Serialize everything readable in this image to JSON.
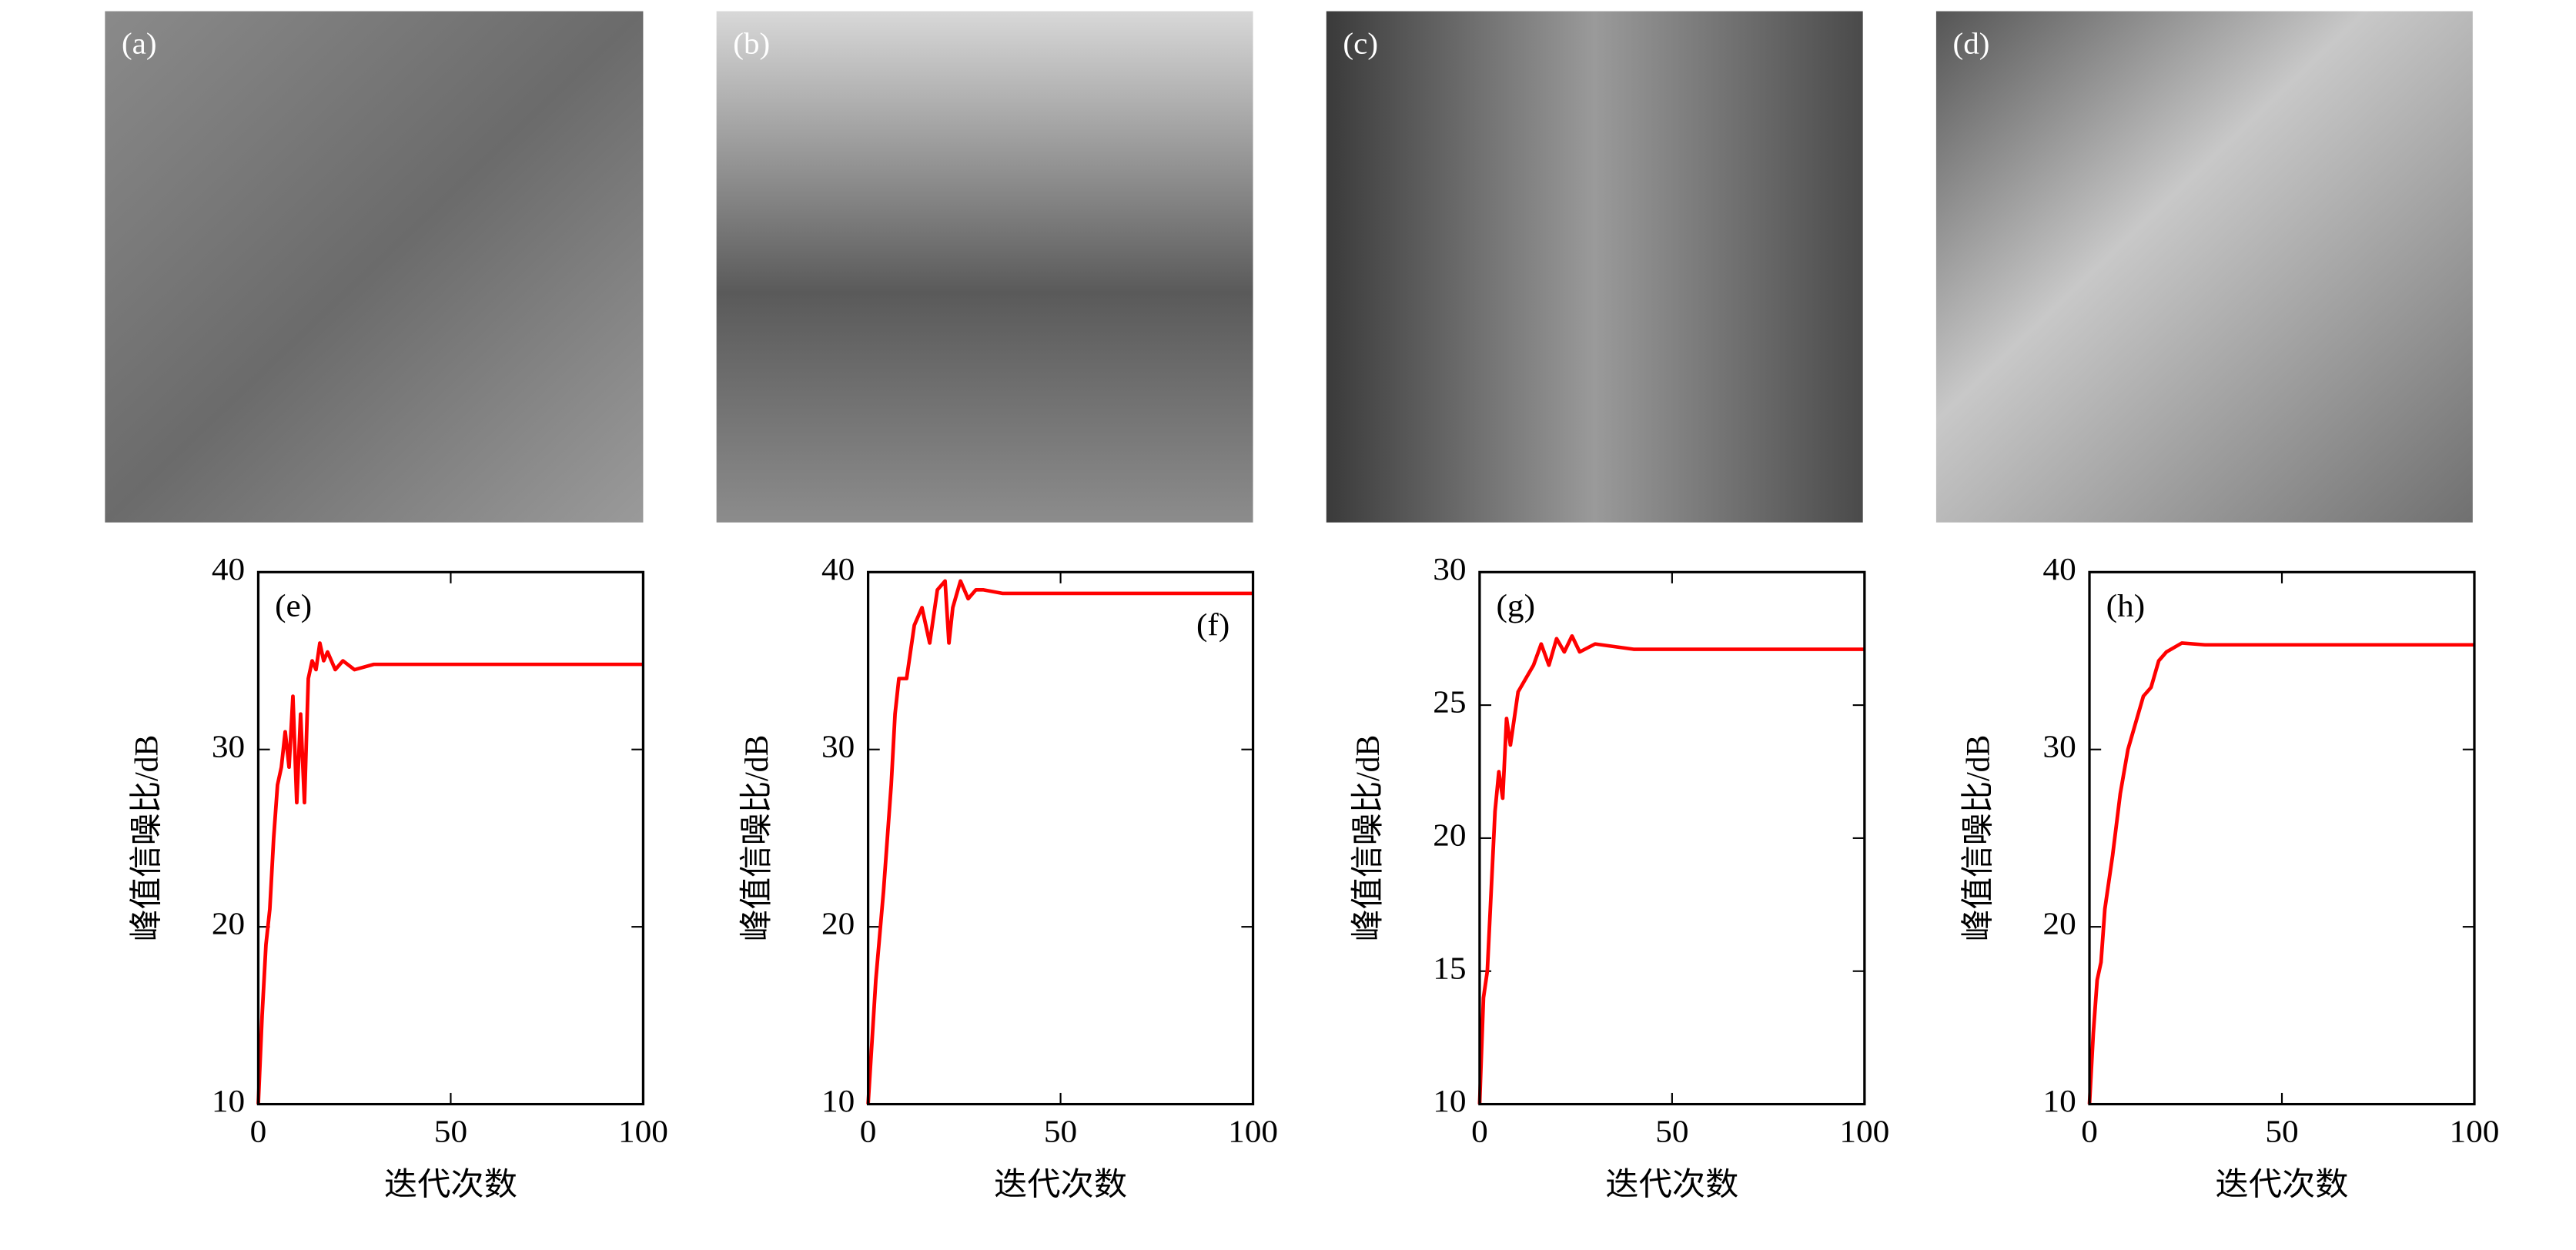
{
  "images": [
    {
      "label": "(a)"
    },
    {
      "label": "(b)"
    },
    {
      "label": "(c)"
    },
    {
      "label": "(d)"
    }
  ],
  "chart_data": [
    {
      "type": "line",
      "panel_label": "(e)",
      "label_corner": "upper left",
      "x_label": "迭代次数",
      "y_label": "峰值信噪比/dB",
      "xlim": [
        0,
        100
      ],
      "ylim": [
        10,
        40
      ],
      "xticks": [
        0,
        50,
        100
      ],
      "yticks": [
        10,
        20,
        30,
        40
      ],
      "series": [
        {
          "color": "#ff0000",
          "x": [
            0,
            1,
            2,
            3,
            4,
            5,
            6,
            7,
            8,
            9,
            10,
            11,
            12,
            13,
            14,
            15,
            16,
            17,
            18,
            20,
            22,
            25,
            30,
            40,
            50,
            100
          ],
          "values": [
            10,
            15,
            19,
            21,
            25,
            28,
            29,
            31,
            29,
            33,
            27,
            32,
            27,
            34,
            35,
            34.5,
            36,
            35,
            35.5,
            34.5,
            35,
            34.5,
            34.8,
            34.8,
            34.8,
            34.8
          ]
        }
      ]
    },
    {
      "type": "line",
      "panel_label": "(f)",
      "label_corner": "upper right",
      "x_label": "迭代次数",
      "y_label": "峰值信噪比/dB",
      "xlim": [
        0,
        100
      ],
      "ylim": [
        10,
        40
      ],
      "xticks": [
        0,
        50,
        100
      ],
      "yticks": [
        10,
        20,
        30,
        40
      ],
      "series": [
        {
          "color": "#ff0000",
          "x": [
            0,
            2,
            4,
            6,
            7,
            8,
            10,
            12,
            14,
            16,
            18,
            20,
            21,
            22,
            24,
            26,
            28,
            30,
            35,
            50,
            100
          ],
          "values": [
            10,
            17,
            22,
            28,
            32,
            34,
            34,
            37,
            38,
            36,
            39,
            39.5,
            36,
            38,
            39.5,
            38.5,
            39,
            39,
            38.8,
            38.8,
            38.8
          ]
        }
      ]
    },
    {
      "type": "line",
      "panel_label": "(g)",
      "label_corner": "upper left",
      "x_label": "迭代次数",
      "y_label": "峰值信噪比/dB",
      "xlim": [
        0,
        100
      ],
      "ylim": [
        10,
        30
      ],
      "xticks": [
        0,
        50,
        100
      ],
      "yticks": [
        10,
        15,
        20,
        25,
        30
      ],
      "series": [
        {
          "color": "#ff0000",
          "x": [
            0,
            1,
            2,
            3,
            4,
            5,
            6,
            7,
            8,
            9,
            10,
            12,
            14,
            16,
            18,
            20,
            22,
            24,
            26,
            30,
            40,
            100
          ],
          "values": [
            10,
            14,
            15,
            18,
            21,
            22.5,
            21.5,
            24.5,
            23.5,
            24.5,
            25.5,
            26,
            26.5,
            27.3,
            26.5,
            27.5,
            27,
            27.6,
            27,
            27.3,
            27.1,
            27.1
          ]
        }
      ]
    },
    {
      "type": "line",
      "panel_label": "(h)",
      "label_corner": "upper left",
      "x_label": "迭代次数",
      "y_label": "峰值信噪比/dB",
      "xlim": [
        0,
        100
      ],
      "ylim": [
        10,
        40
      ],
      "xticks": [
        0,
        50,
        100
      ],
      "yticks": [
        10,
        20,
        30,
        40
      ],
      "series": [
        {
          "color": "#ff0000",
          "x": [
            0,
            1,
            2,
            3,
            4,
            6,
            8,
            10,
            12,
            14,
            16,
            18,
            20,
            24,
            30,
            40,
            100
          ],
          "values": [
            10,
            14,
            17,
            18,
            21,
            24,
            27.5,
            30,
            31.5,
            33,
            33.5,
            35,
            35.5,
            36,
            35.9,
            35.9,
            35.9
          ]
        }
      ]
    }
  ]
}
